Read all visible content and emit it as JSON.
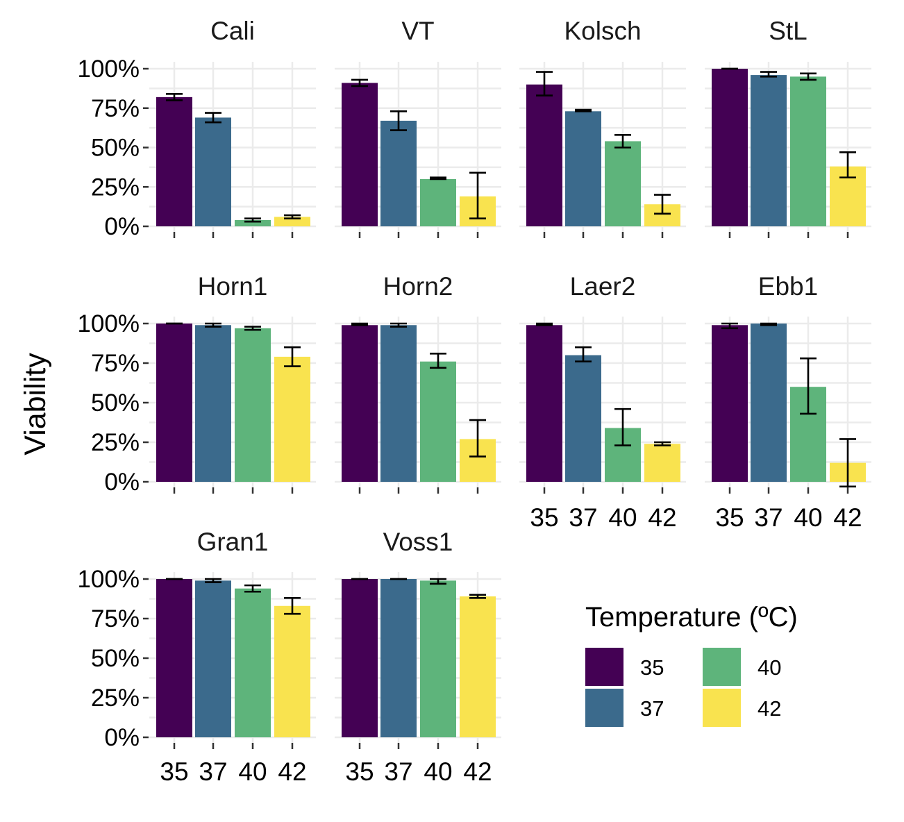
{
  "chart_data": {
    "type": "bar",
    "layout": "faceted",
    "ylabel": "Viability",
    "xlabel": "",
    "ylim": [
      0,
      1
    ],
    "yticks": [
      "0%",
      "25%",
      "50%",
      "75%",
      "100%"
    ],
    "categories": [
      "35",
      "37",
      "40",
      "42"
    ],
    "legend": {
      "title": "Temperature (ºC)",
      "placement": "bottom-right",
      "entries": [
        "35",
        "37",
        "40",
        "42"
      ]
    },
    "colors": {
      "35": "#440154",
      "37": "#3b6a8c",
      "40": "#5eb47b",
      "42": "#f9e34f"
    },
    "grid": true,
    "facets": [
      {
        "name": "Cali",
        "values": [
          0.82,
          0.69,
          0.04,
          0.06
        ],
        "err_low": [
          0.8,
          0.66,
          0.03,
          0.05
        ],
        "err_high": [
          0.84,
          0.72,
          0.05,
          0.07
        ]
      },
      {
        "name": "VT",
        "values": [
          0.91,
          0.67,
          0.3,
          0.19
        ],
        "err_low": [
          0.89,
          0.61,
          0.3,
          0.05
        ],
        "err_high": [
          0.93,
          0.73,
          0.31,
          0.34
        ]
      },
      {
        "name": "Kolsch",
        "values": [
          0.9,
          0.73,
          0.54,
          0.14
        ],
        "err_low": [
          0.83,
          0.73,
          0.5,
          0.08
        ],
        "err_high": [
          0.98,
          0.74,
          0.58,
          0.2
        ]
      },
      {
        "name": "StL",
        "values": [
          1.0,
          0.96,
          0.95,
          0.38
        ],
        "err_low": [
          1.0,
          0.95,
          0.93,
          0.31
        ],
        "err_high": [
          1.0,
          0.98,
          0.97,
          0.47
        ]
      },
      {
        "name": "Horn1",
        "values": [
          1.0,
          0.99,
          0.97,
          0.79
        ],
        "err_low": [
          1.0,
          0.98,
          0.96,
          0.73
        ],
        "err_high": [
          1.0,
          1.0,
          0.98,
          0.85
        ]
      },
      {
        "name": "Horn2",
        "values": [
          0.99,
          0.99,
          0.76,
          0.27
        ],
        "err_low": [
          0.99,
          0.98,
          0.72,
          0.16
        ],
        "err_high": [
          1.0,
          1.0,
          0.81,
          0.39
        ]
      },
      {
        "name": "Laer2",
        "values": [
          0.99,
          0.8,
          0.34,
          0.24
        ],
        "err_low": [
          0.99,
          0.76,
          0.23,
          0.23
        ],
        "err_high": [
          1.0,
          0.85,
          0.46,
          0.25
        ]
      },
      {
        "name": "Ebb1",
        "values": [
          0.99,
          1.0,
          0.6,
          0.12
        ],
        "err_low": [
          0.97,
          0.99,
          0.43,
          -0.03
        ],
        "err_high": [
          1.0,
          1.0,
          0.78,
          0.27
        ]
      },
      {
        "name": "Gran1",
        "values": [
          1.0,
          0.99,
          0.94,
          0.83
        ],
        "err_low": [
          1.0,
          0.98,
          0.92,
          0.78
        ],
        "err_high": [
          1.0,
          1.0,
          0.96,
          0.88
        ]
      },
      {
        "name": "Voss1",
        "values": [
          1.0,
          1.0,
          0.99,
          0.89
        ],
        "err_low": [
          1.0,
          1.0,
          0.97,
          0.88
        ],
        "err_high": [
          1.0,
          1.0,
          1.0,
          0.9
        ]
      }
    ]
  }
}
